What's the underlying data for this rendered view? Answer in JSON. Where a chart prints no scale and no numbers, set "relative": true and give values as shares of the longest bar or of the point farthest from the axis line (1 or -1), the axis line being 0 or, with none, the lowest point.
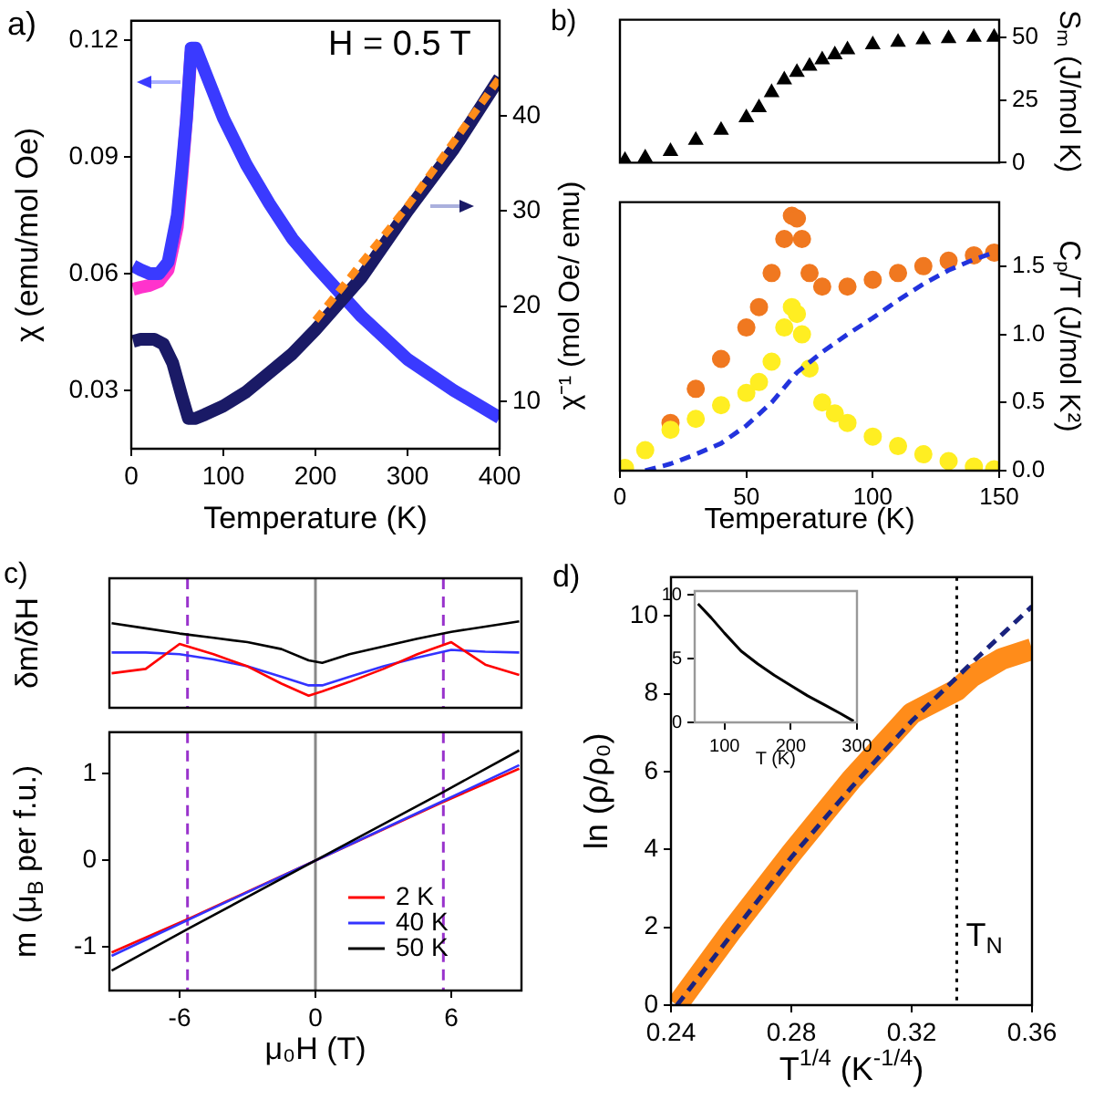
{
  "chart_data": [
    {
      "type": "line",
      "xlabel": "Temperature (K)",
      "ylabel": "χ (emu/mol Oe)",
      "annotations": [
        "a)",
        "H = 0.5 T"
      ],
      "xlim": [
        0,
        400
      ],
      "xticks": [
        0,
        100,
        200,
        300,
        400
      ],
      "ylim": [
        0.015,
        0.125
      ],
      "yticks": [
        0.03,
        0.06,
        0.09,
        0.12
      ],
      "y2lim": [
        5,
        50
      ],
      "y2ticks": [
        10,
        20,
        30,
        40
      ],
      "marker": "none",
      "series": [
        {
          "color": "#ff33cc",
          "x": [
            2,
            10,
            20,
            30,
            40,
            50,
            55,
            60,
            65
          ],
          "values": [
            0.056,
            0.0565,
            0.057,
            0.058,
            0.061,
            0.072,
            0.085,
            0.1,
            0.117
          ]
        },
        {
          "color": "#3a3aff",
          "x": [
            2,
            10,
            20,
            30,
            40,
            50,
            55,
            60,
            65,
            70,
            80,
            100,
            125,
            150,
            175,
            200,
            250,
            300,
            350,
            400
          ],
          "values": [
            0.062,
            0.061,
            0.06,
            0.06,
            0.063,
            0.075,
            0.087,
            0.1,
            0.118,
            0.118,
            0.112,
            0.1,
            0.088,
            0.078,
            0.069,
            0.062,
            0.049,
            0.038,
            0.03,
            0.023
          ]
        },
        {
          "color": "#1a1a66",
          "axis": "y2",
          "x": [
            2,
            10,
            25,
            35,
            45,
            55,
            62,
            70,
            80,
            100,
            125,
            150,
            175,
            200,
            250,
            300,
            350,
            400
          ],
          "values": [
            16.3,
            16.5,
            16.5,
            16,
            14,
            10.5,
            8.2,
            8.2,
            8.6,
            9.5,
            11,
            13,
            15,
            17.5,
            23,
            30,
            36.5,
            44
          ]
        },
        {
          "color": "#ff8c1a",
          "axis": "y2",
          "line_style": "dashed",
          "x": [
            200,
            300,
            400
          ],
          "values": [
            18.5,
            30.5,
            44
          ]
        }
      ]
    },
    {
      "type": "scatter",
      "ylabel": "Sₘ (J/mol K)",
      "annotations": [
        "b)"
      ],
      "tick_labels": "y",
      "xlim": [
        0,
        150
      ],
      "ylim": [
        0,
        57
      ],
      "yticks": [
        0,
        25,
        50
      ],
      "marker": "triangle",
      "series": [
        {
          "color": "#000000",
          "x": [
            2,
            10,
            20,
            30,
            40,
            50,
            55,
            60,
            65,
            70,
            75,
            80,
            85,
            90,
            100,
            110,
            120,
            130,
            140,
            148
          ],
          "values": [
            1,
            2,
            4.5,
            9,
            13,
            18,
            22,
            28,
            33,
            36,
            38.5,
            41,
            43,
            45,
            47,
            48,
            49,
            49.5,
            50,
            50
          ]
        }
      ]
    },
    {
      "type": "scatter",
      "xlabel": "Temperature (K)",
      "ylabel": "Cₚ/T (J/mol K²)",
      "annotations": [
        "χ⁻¹ (mol Oe/ emu)"
      ],
      "xlim": [
        0,
        150
      ],
      "xticks": [
        0,
        50,
        100,
        150
      ],
      "ylim": [
        0,
        1.97
      ],
      "yticks": [
        {
          "value": 0,
          "label": "0.0"
        },
        {
          "value": 0.5,
          "label": "0.5"
        },
        {
          "value": 1,
          "label": "1.0"
        },
        {
          "value": 1.5,
          "label": "1.5"
        }
      ],
      "marker": "circle",
      "series": [
        {
          "color": "#f07820",
          "x": [
            20,
            30,
            40,
            50,
            55,
            60,
            65,
            68,
            70,
            72,
            75,
            80,
            90,
            100,
            110,
            120,
            130,
            140,
            148
          ],
          "values": [
            0.35,
            0.6,
            0.82,
            1.05,
            1.2,
            1.45,
            1.7,
            1.87,
            1.85,
            1.7,
            1.45,
            1.35,
            1.35,
            1.4,
            1.45,
            1.5,
            1.54,
            1.58,
            1.6
          ]
        },
        {
          "color": "#ffee22",
          "x": [
            2,
            10,
            20,
            30,
            40,
            50,
            55,
            60,
            65,
            68,
            70,
            72,
            75,
            80,
            85,
            90,
            100,
            110,
            120,
            130,
            140,
            148
          ],
          "values": [
            0.02,
            0.15,
            0.3,
            0.38,
            0.48,
            0.57,
            0.65,
            0.8,
            1.05,
            1.2,
            1.15,
            1.0,
            0.75,
            0.5,
            0.42,
            0.35,
            0.25,
            0.18,
            0.12,
            0.07,
            0.03,
            0.01
          ]
        },
        {
          "type": "line",
          "marker": "none",
          "line_style": "dashed",
          "color": "#2233dd",
          "x": [
            10,
            20,
            30,
            40,
            50,
            60,
            70,
            80,
            90,
            100,
            110,
            120,
            130,
            140,
            148
          ],
          "values": [
            0,
            0.05,
            0.12,
            0.2,
            0.33,
            0.5,
            0.72,
            0.87,
            1.0,
            1.12,
            1.25,
            1.37,
            1.47,
            1.55,
            1.6
          ]
        }
      ]
    },
    {
      "type": "line",
      "ylabel": "δm/δH",
      "annotations": [
        "c)"
      ],
      "relative": true,
      "tick_labels": false,
      "xlim": [
        -9.1,
        9.1
      ],
      "marker": "none",
      "ref_lines": [
        {
          "axis": "x",
          "value": -5.65,
          "color": "#9933cc",
          "line_style": "dashed"
        },
        {
          "axis": "x",
          "value": 0,
          "color": "#888888",
          "line_style": "solid"
        },
        {
          "axis": "x",
          "value": 5.65,
          "color": "#9933cc",
          "line_style": "dashed"
        }
      ],
      "series": [
        {
          "color": "#000000",
          "x": [
            -9,
            -7.5,
            -6,
            -4.5,
            -3,
            -1.5,
            -0.3,
            0.3,
            1.5,
            3,
            4.5,
            6,
            7.5,
            9
          ],
          "values": [
            0.98,
            0.92,
            0.86,
            0.81,
            0.76,
            0.68,
            0.55,
            0.52,
            0.62,
            0.71,
            0.8,
            0.88,
            0.94,
            1
          ]
        },
        {
          "color": "#3333ff",
          "x": [
            -9,
            -7.5,
            -6,
            -4.5,
            -3,
            -1.5,
            -0.3,
            0.3,
            1.5,
            3,
            4.5,
            6,
            7.5,
            9
          ],
          "values": [
            0.64,
            0.64,
            0.62,
            0.56,
            0.48,
            0.36,
            0.26,
            0.26,
            0.36,
            0.48,
            0.58,
            0.67,
            0.65,
            0.64
          ]
        },
        {
          "color": "#ff0000",
          "x": [
            -9,
            -7.5,
            -6,
            -4.5,
            -3,
            -1.5,
            -0.3,
            0.3,
            1.5,
            3,
            4.5,
            6,
            7.5,
            9
          ],
          "values": [
            0.4,
            0.45,
            0.74,
            0.62,
            0.48,
            0.28,
            0.14,
            0.19,
            0.3,
            0.45,
            0.62,
            0.76,
            0.5,
            0.38
          ]
        }
      ]
    },
    {
      "type": "line",
      "xlabel": "μ₀H (T)",
      "ylabel": "m (μ$_{B}$ per f.u.)",
      "legend": "bottom right",
      "xlim": [
        -9.1,
        9.1
      ],
      "xticks": [
        -6,
        0,
        6
      ],
      "ylim": [
        -1.5,
        1.48
      ],
      "yticks": [
        -1,
        0,
        1
      ],
      "marker": "none",
      "ref_lines": [
        {
          "axis": "x",
          "value": -5.65,
          "color": "#9933cc",
          "line_style": "dashed"
        },
        {
          "axis": "x",
          "value": 0,
          "color": "#888888",
          "line_style": "solid"
        },
        {
          "axis": "x",
          "value": 5.65,
          "color": "#9933cc",
          "line_style": "dashed"
        }
      ],
      "series": [
        {
          "name": "2 K",
          "color": "#ff0000",
          "x": [
            -9,
            -5.5,
            0,
            5.5,
            9
          ],
          "values": [
            -1.06,
            -0.66,
            0,
            0.66,
            1.06
          ]
        },
        {
          "name": "40 K",
          "color": "#3333ff",
          "x": [
            -9,
            -5.5,
            0,
            5.5,
            9
          ],
          "values": [
            -1.1,
            -0.67,
            0,
            0.67,
            1.1
          ]
        },
        {
          "name": "50 K",
          "color": "#000000",
          "x": [
            -9,
            -5.5,
            0,
            5.5,
            9
          ],
          "values": [
            -1.27,
            -0.77,
            0,
            0.77,
            1.27
          ]
        }
      ]
    },
    {
      "type": "line",
      "xlabel": "T$^{1/4}$ (K$^{-1/4}$)",
      "ylabel": "ln (ρ/ρ₀)",
      "annotations": [
        "d)"
      ],
      "xlim": [
        0.24,
        0.36
      ],
      "xticks": [
        0.24,
        0.28,
        0.32,
        0.36
      ],
      "ylim": [
        0,
        11
      ],
      "yticks": [
        0,
        2,
        4,
        6,
        8,
        10
      ],
      "marker": "none",
      "ref_lines": [
        {
          "axis": "x",
          "value": 0.335,
          "label": "T$_{N}$",
          "color": "#000000",
          "line_style": "dotted"
        }
      ],
      "series": [
        {
          "color": "#ff8c1a",
          "x": [
            0.242,
            0.26,
            0.28,
            0.3,
            0.32,
            0.335,
            0.34,
            0.35,
            0.36
          ],
          "values": [
            0,
            1.9,
            3.9,
            5.8,
            7.5,
            8.1,
            8.45,
            8.9,
            9.15
          ]
        },
        {
          "color": "#1a237e",
          "line_style": "dashed",
          "x": [
            0.242,
            0.26,
            0.28,
            0.3,
            0.32,
            0.34,
            0.36
          ],
          "values": [
            0,
            1.8,
            3.8,
            5.6,
            7.3,
            8.8,
            10.25
          ]
        }
      ]
    },
    {
      "type": "line",
      "xlabel": "T (K)",
      "xlim": [
        55,
        300
      ],
      "xticks": [
        100,
        200,
        300
      ],
      "ylim": [
        0,
        10.3
      ],
      "yticks": [
        0,
        5,
        10
      ],
      "marker": "none",
      "series": [
        {
          "color": "#000000",
          "x": [
            60,
            80,
            100,
            125,
            150,
            175,
            200,
            225,
            250,
            275,
            295
          ],
          "values": [
            9.3,
            8.2,
            7,
            5.6,
            4.6,
            3.7,
            2.9,
            2.1,
            1.4,
            0.7,
            0.1
          ]
        }
      ]
    }
  ]
}
